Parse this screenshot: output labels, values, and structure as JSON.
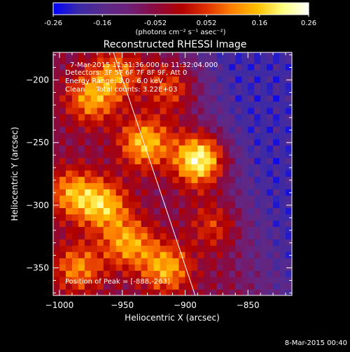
{
  "colorbar": {
    "tick_labels": [
      "-0.26",
      "-0.16",
      "-0.052",
      "0.052",
      "0.16",
      "0.26"
    ],
    "tick_values": [
      -0.26,
      -0.16,
      -0.052,
      0.052,
      0.16,
      0.26
    ],
    "min": -0.26,
    "max": 0.26,
    "unit_label": "(photons cm⁻² s⁻¹ asec⁻²)"
  },
  "header": {
    "title": "Reconstructed RHESSI Image"
  },
  "annotations": {
    "time_range": "7-Mar-2015 11:31:36.000 to 11:32:04.000",
    "detectors": "Detectors: 3F 5F 6F 7F 8F 9F, Att 0",
    "energy_range": "Energy Range: 3.0 - 6.0 keV",
    "clean_counts": "Clean     Total counts: 3.22E+03",
    "peak_position": "Position of Peak = [-888,-263]"
  },
  "footer": {
    "timestamp": "8-Mar-2015 00:40"
  },
  "colors": {
    "background": "#000000",
    "axis": "#ffffff",
    "limb_line": "#ffffff",
    "colormap": [
      "#0000ff",
      "#3a2aa8",
      "#5a2a8a",
      "#6e2078",
      "#8a0a40",
      "#b00000",
      "#e03000",
      "#ff8000",
      "#ffc000",
      "#ffff80",
      "#ffffff"
    ]
  },
  "chart_data": {
    "type": "heatmap",
    "title": "Reconstructed RHESSI Image",
    "xlabel": "Heliocentric X (arcsec)",
    "ylabel": "Heliocentric Y (arcsec)",
    "xlim": [
      -1005,
      -815
    ],
    "ylim": [
      -372,
      -178
    ],
    "x_ticks": [
      -1000,
      -950,
      -900,
      -850
    ],
    "x_tick_labels": [
      "−1000",
      "−950",
      "−900",
      "−850"
    ],
    "y_ticks": [
      -200,
      -250,
      -300,
      -350
    ],
    "y_tick_labels": [
      "−200",
      "−250",
      "−300",
      "−350"
    ],
    "peak": [
      -888,
      -263
    ],
    "limb_line": {
      "x": [
        -957,
        -892
      ],
      "y": [
        -178,
        -372
      ]
    },
    "sources": [
      {
        "x": -888,
        "y": -263,
        "value": 0.26
      },
      {
        "x": -932,
        "y": -250,
        "value": 0.17
      },
      {
        "x": -965,
        "y": -300,
        "value": 0.16
      },
      {
        "x": -990,
        "y": -290,
        "value": 0.13
      },
      {
        "x": -945,
        "y": -330,
        "value": 0.14
      },
      {
        "x": -915,
        "y": -350,
        "value": 0.15
      },
      {
        "x": -975,
        "y": -215,
        "value": 0.13
      },
      {
        "x": -955,
        "y": -195,
        "value": 0.11
      },
      {
        "x": -910,
        "y": -205,
        "value": 0.08
      },
      {
        "x": -875,
        "y": -315,
        "value": 0.06
      },
      {
        "x": -985,
        "y": -350,
        "value": 0.12
      }
    ],
    "background_level": -0.2
  }
}
